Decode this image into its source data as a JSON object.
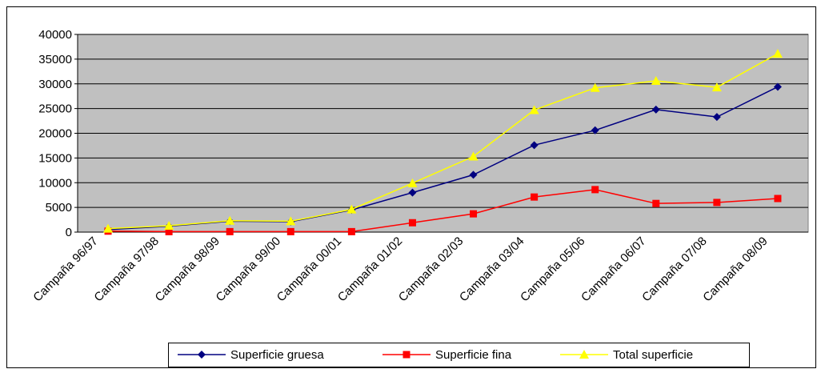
{
  "chart_data": {
    "type": "line",
    "categories": [
      "Campaña 96/97",
      "Campaña 97/98",
      "Campaña 98/99",
      "Campaña 99/00",
      "Campaña 00/01",
      "Campaña 01/02",
      "Campaña 02/03",
      "Campaña 03/04",
      "Campaña 05/06",
      "Campaña 06/07",
      "Campaña 07/08",
      "Campaña 08/09"
    ],
    "series": [
      {
        "name": "Superficie gruesa",
        "color": "#000080",
        "marker": "diamond",
        "values": [
          500,
          1200,
          2200,
          2100,
          4500,
          8000,
          11600,
          17600,
          20600,
          24800,
          23300,
          29400
        ]
      },
      {
        "name": "Superficie fina",
        "color": "#ff0000",
        "marker": "square",
        "values": [
          200,
          100,
          100,
          100,
          100,
          1900,
          3700,
          7100,
          8600,
          5800,
          6000,
          6800
        ]
      },
      {
        "name": "Total superficie",
        "color": "#ffff00",
        "marker": "triangle",
        "values": [
          700,
          1300,
          2300,
          2200,
          4600,
          9900,
          15300,
          24700,
          29200,
          30600,
          29300,
          36100
        ]
      }
    ],
    "ylim": [
      0,
      40000
    ],
    "yticks": [
      0,
      5000,
      10000,
      15000,
      20000,
      25000,
      30000,
      35000,
      40000
    ],
    "grid": true,
    "legend": "bottom"
  }
}
